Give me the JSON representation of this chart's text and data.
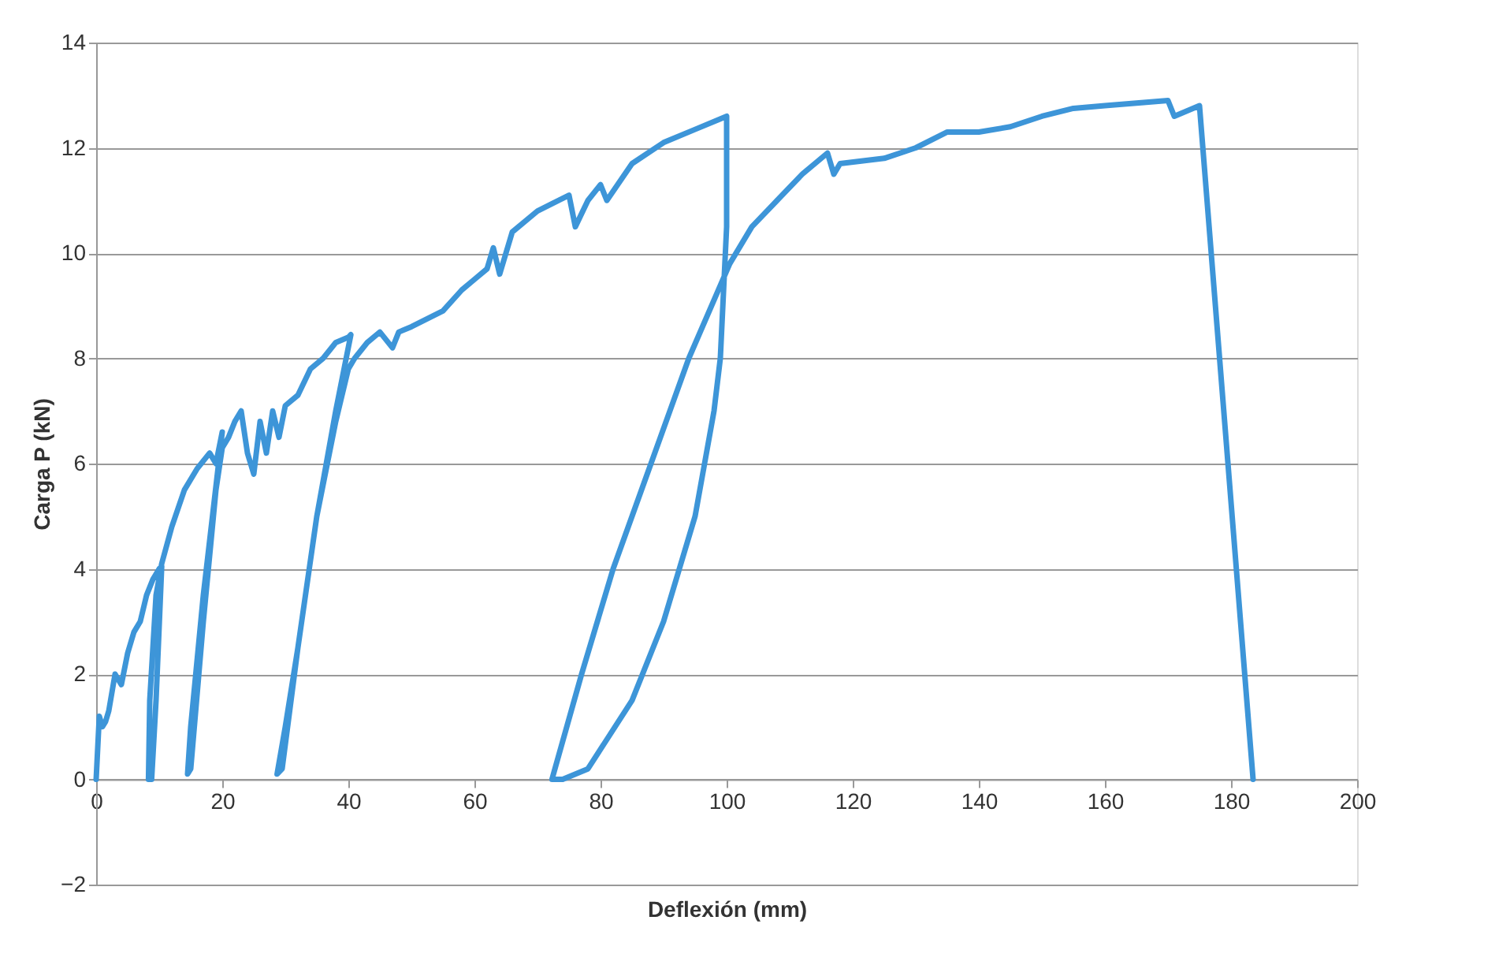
{
  "chart_data": {
    "type": "line",
    "xlabel": "Deflexión (mm)",
    "ylabel": "Carga P (kN)",
    "xlim": [
      0,
      200
    ],
    "ylim": [
      -2,
      14
    ],
    "xticks": [
      0,
      20,
      40,
      60,
      80,
      100,
      120,
      140,
      160,
      180,
      200
    ],
    "yticks": [
      -2,
      0,
      2,
      4,
      6,
      8,
      10,
      12,
      14
    ],
    "grid": "y",
    "marker": "none",
    "line_style": "solid",
    "series": [
      {
        "color": "#3d95d8",
        "x": [
          0,
          0.5,
          1,
          1.5,
          2,
          3,
          4,
          5,
          6,
          7,
          8,
          9,
          10,
          10.4,
          9.5,
          8.8,
          8.3,
          8.5,
          9.5,
          10.4,
          12,
          14,
          16,
          18,
          19,
          20,
          17,
          15,
          14.5,
          15,
          17,
          19,
          20,
          21,
          22,
          23,
          24,
          25,
          26,
          27,
          28,
          29,
          30,
          32,
          34,
          36,
          38,
          40,
          40.4,
          38,
          35,
          32,
          30,
          28.7,
          29.5,
          32,
          35,
          38,
          40,
          41,
          43,
          45,
          47,
          48,
          50,
          55,
          58,
          60,
          62,
          63,
          64,
          66,
          70,
          75,
          76,
          78,
          80,
          81,
          85,
          90,
          95,
          100,
          100,
          99,
          98,
          95,
          90,
          85,
          78,
          74,
          72.3,
          73,
          77,
          82,
          88,
          94,
          100.5,
          104,
          108,
          112,
          116,
          117,
          118,
          125,
          130,
          135,
          140,
          145,
          150,
          155,
          160,
          165,
          170,
          171,
          175,
          183.5
        ],
        "values": [
          0,
          1.2,
          1.0,
          1.1,
          1.3,
          2.0,
          1.8,
          2.4,
          2.8,
          3.0,
          3.5,
          3.8,
          4.0,
          4.05,
          1.5,
          0,
          0,
          1.5,
          3.5,
          4.1,
          4.8,
          5.5,
          5.9,
          6.2,
          6.0,
          6.6,
          3.5,
          1.0,
          0.1,
          0.2,
          3.0,
          5.5,
          6.3,
          6.5,
          6.8,
          7.0,
          6.2,
          5.8,
          6.8,
          6.2,
          7.0,
          6.5,
          7.1,
          7.3,
          7.8,
          8.0,
          8.3,
          8.4,
          8.45,
          7.0,
          5.0,
          2.5,
          1.0,
          0.1,
          0.2,
          2.5,
          5.0,
          6.8,
          7.8,
          8.0,
          8.3,
          8.5,
          8.2,
          8.5,
          8.6,
          8.9,
          9.3,
          9.5,
          9.7,
          10.1,
          9.6,
          10.4,
          10.8,
          11.1,
          10.5,
          11.0,
          11.3,
          11.0,
          11.7,
          12.1,
          12.35,
          12.6,
          10.5,
          8.0,
          7.0,
          5.0,
          3.0,
          1.5,
          0.2,
          0,
          0,
          0.3,
          2.0,
          4.0,
          6.0,
          8.0,
          9.8,
          10.5,
          11.0,
          11.5,
          11.9,
          11.5,
          11.7,
          11.8,
          12.0,
          12.3,
          12.3,
          12.4,
          12.6,
          12.75,
          12.8,
          12.85,
          12.9,
          12.6,
          12.8,
          0
        ]
      }
    ]
  }
}
